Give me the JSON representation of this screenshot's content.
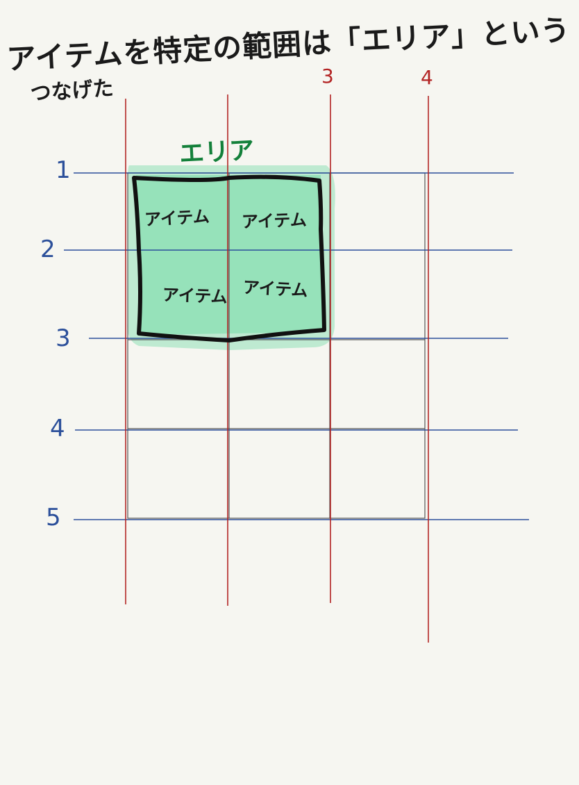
{
  "title": {
    "line1": "アイテムを特定の範囲は「エリア」という",
    "line2": "つなげた"
  },
  "area_label": "エリア",
  "item_label": "アイテム",
  "row_lines": [
    "1",
    "2",
    "3",
    "4",
    "5"
  ],
  "column_lines": [
    "3",
    "4"
  ],
  "colors": {
    "row_line": "#2b4f9a",
    "column_line": "#b32424",
    "area_fill": "#8fe0b6",
    "area_border": "#111111",
    "cell_border": "#555555",
    "area_label": "#13803a"
  }
}
